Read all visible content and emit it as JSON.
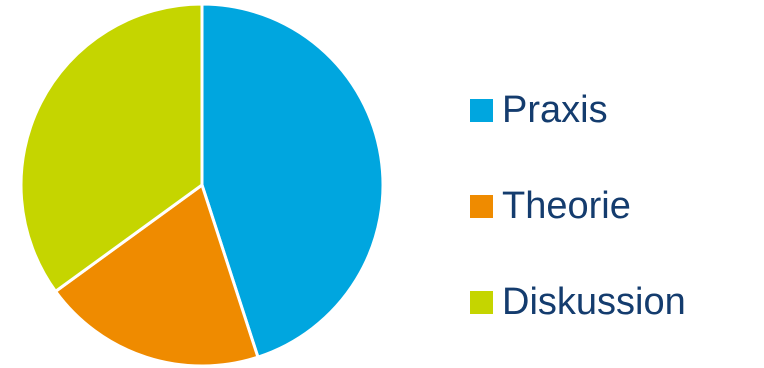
{
  "chart_data": {
    "type": "pie",
    "categories": [
      "Praxis",
      "Theorie",
      "Diskussion"
    ],
    "values": [
      45,
      20,
      35
    ],
    "colors": [
      "#00a6df",
      "#ef8b00",
      "#c5d500"
    ],
    "start_angle_deg": 0,
    "direction": "clockwise",
    "legend_position": "right"
  }
}
